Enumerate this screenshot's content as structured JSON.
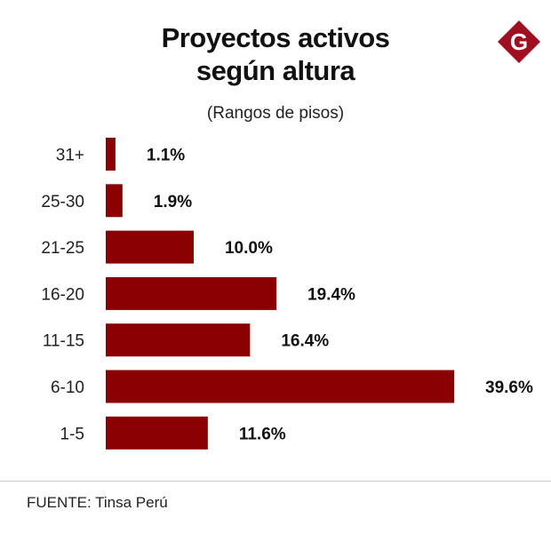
{
  "header": {
    "title_line1": "Proyectos activos",
    "title_line2": "según altura",
    "subtitle": "(Rangos de pisos)"
  },
  "logo": {
    "letter": "G",
    "color": "#a10e1f",
    "icon": "gestion-logo-icon"
  },
  "footer": {
    "source": "FUENTE: Tinsa Perú"
  },
  "chart_data": {
    "type": "bar",
    "orientation": "horizontal",
    "title": "Proyectos activos según altura",
    "subtitle": "(Rangos de pisos)",
    "xlabel": "",
    "ylabel": "",
    "categories": [
      "31+",
      "25-30",
      "21-25",
      "16-20",
      "11-15",
      "6-10",
      "1-5"
    ],
    "values": [
      1.1,
      1.9,
      10.0,
      19.4,
      16.4,
      39.6,
      11.6
    ],
    "value_labels": [
      "1.1%",
      "1.9%",
      "10.0%",
      "19.4%",
      "16.4%",
      "39.6%",
      "11.6%"
    ],
    "unit": "%",
    "xlim": [
      0,
      39.6
    ],
    "grid": false,
    "legend": "none",
    "bar_color": "#8b0000"
  }
}
